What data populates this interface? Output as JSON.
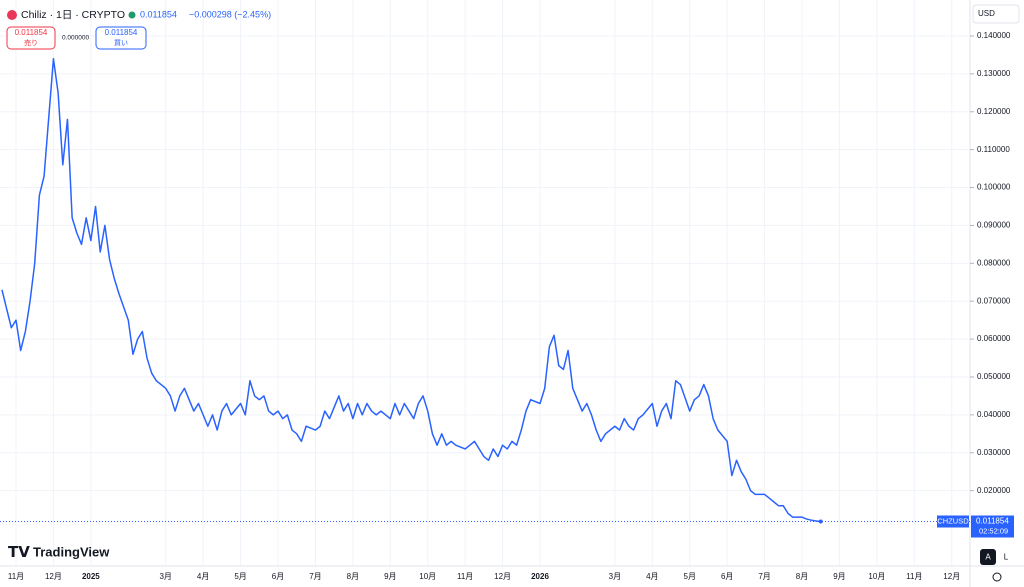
{
  "chart_data": {
    "type": "line",
    "header": {
      "symbol": "Chiliz · 1日 · CRYPTO",
      "price": 0.011854,
      "price_label": "0.011854",
      "change": "−0.000298 (−2.45%)",
      "sell_price": "0.011854",
      "sell": "売り",
      "spread": "0.000000",
      "buy_price": "0.011854",
      "buy": "買い",
      "currency": "USD",
      "ticker": "CHZUSD",
      "countdown": "02:52:09",
      "brand": "TradingView",
      "auto": "A",
      "log": "L"
    },
    "series": [
      {
        "name": "CHZUSD",
        "color": "#2962ff",
        "x": [
          "2024-10",
          "2024-10",
          "2024-10",
          "2024-11",
          "2024-11",
          "2024-11",
          "2024-11",
          "2024-11",
          "2024-11",
          "2024-11",
          "2024-12",
          "2024-12",
          "2024-12",
          "2024-12",
          "2024-12",
          "2024-12",
          "2024-12",
          "2024-12",
          "2025-01",
          "2025-01",
          "2025-01",
          "2025-01",
          "2025-01",
          "2025-01",
          "2025-01",
          "2025-02",
          "2025-02",
          "2025-02",
          "2025-02",
          "2025-02",
          "2025-02",
          "2025-02",
          "2025-03",
          "2025-03",
          "2025-03",
          "2025-03",
          "2025-03",
          "2025-03",
          "2025-03",
          "2025-03",
          "2025-04",
          "2025-04",
          "2025-04",
          "2025-04",
          "2025-04",
          "2025-04",
          "2025-04",
          "2025-05",
          "2025-05",
          "2025-05",
          "2025-05",
          "2025-05",
          "2025-05",
          "2025-05",
          "2025-05",
          "2025-06",
          "2025-06",
          "2025-06",
          "2025-06",
          "2025-06",
          "2025-06",
          "2025-06",
          "2025-07",
          "2025-07",
          "2025-07",
          "2025-07",
          "2025-07",
          "2025-07",
          "2025-07",
          "2025-07",
          "2025-08",
          "2025-08",
          "2025-08",
          "2025-08",
          "2025-08",
          "2025-08",
          "2025-08",
          "2025-09",
          "2025-09",
          "2025-09",
          "2025-09",
          "2025-09",
          "2025-09",
          "2025-09",
          "2025-09",
          "2025-10",
          "2025-10",
          "2025-10",
          "2025-10",
          "2025-10",
          "2025-10",
          "2025-10",
          "2025-11",
          "2025-11",
          "2025-11",
          "2025-11",
          "2025-11",
          "2025-11",
          "2025-11",
          "2025-11",
          "2025-12",
          "2025-12",
          "2025-12",
          "2025-12",
          "2025-12",
          "2025-12",
          "2025-12",
          "2026-01",
          "2026-01",
          "2026-01",
          "2026-01",
          "2026-01",
          "2026-01",
          "2026-01",
          "2026-01",
          "2026-02",
          "2026-02",
          "2026-02",
          "2026-02",
          "2026-02",
          "2026-02",
          "2026-02",
          "2026-03",
          "2026-03",
          "2026-03",
          "2026-03",
          "2026-03",
          "2026-03",
          "2026-03",
          "2026-04",
          "2026-04",
          "2026-04",
          "2026-04",
          "2026-04",
          "2026-04",
          "2026-04",
          "2026-05",
          "2026-05",
          "2026-05",
          "2026-05",
          "2026-05",
          "2026-05",
          "2026-05",
          "2026-06",
          "2026-06",
          "2026-06",
          "2026-06",
          "2026-06",
          "2026-06",
          "2026-06",
          "2026-07",
          "2026-07",
          "2026-07",
          "2026-07",
          "2026-07",
          "2026-07",
          "2026-07",
          "2026-08",
          "2026-08",
          "2026-08",
          "2026-08",
          "2026-08"
        ],
        "values": [
          0.073,
          0.068,
          0.063,
          0.065,
          0.057,
          0.062,
          0.07,
          0.08,
          0.098,
          0.103,
          0.134,
          0.125,
          0.106,
          0.118,
          0.092,
          0.088,
          0.085,
          0.092,
          0.086,
          0.095,
          0.083,
          0.09,
          0.081,
          0.076,
          0.072,
          0.065,
          0.056,
          0.06,
          0.062,
          0.055,
          0.051,
          0.049,
          0.047,
          0.045,
          0.041,
          0.045,
          0.047,
          0.044,
          0.041,
          0.043,
          0.04,
          0.037,
          0.04,
          0.036,
          0.041,
          0.043,
          0.04,
          0.043,
          0.04,
          0.049,
          0.045,
          0.044,
          0.045,
          0.041,
          0.04,
          0.041,
          0.039,
          0.04,
          0.036,
          0.035,
          0.033,
          0.037,
          0.036,
          0.037,
          0.041,
          0.039,
          0.042,
          0.045,
          0.041,
          0.043,
          0.039,
          0.043,
          0.04,
          0.043,
          0.041,
          0.04,
          0.041,
          0.039,
          0.043,
          0.04,
          0.043,
          0.041,
          0.039,
          0.043,
          0.045,
          0.041,
          0.035,
          0.032,
          0.035,
          0.032,
          0.033,
          0.032,
          0.031,
          0.032,
          0.033,
          0.031,
          0.029,
          0.028,
          0.031,
          0.029,
          0.032,
          0.031,
          0.033,
          0.032,
          0.036,
          0.041,
          0.044,
          0.043,
          0.047,
          0.058,
          0.061,
          0.053,
          0.052,
          0.057,
          0.047,
          0.044,
          0.041,
          0.043,
          0.04,
          0.036,
          0.033,
          0.035,
          0.037,
          0.036,
          0.039,
          0.037,
          0.036,
          0.039,
          0.04,
          0.043,
          0.037,
          0.041,
          0.043,
          0.039,
          0.049,
          0.048,
          0.041,
          0.044,
          0.045,
          0.048,
          0.045,
          0.039,
          0.036,
          0.033,
          0.024,
          0.028,
          0.025,
          0.023,
          0.02,
          0.019,
          0.019,
          0.018,
          0.017,
          0.016,
          0.016,
          0.014,
          0.013,
          0.013,
          0.0125,
          0.0122,
          0.012,
          0.011854
        ]
      }
    ],
    "ylim": [
      0.0075,
      0.1495
    ],
    "yticks": [
      {
        "value": 0.14,
        "label": "0.140000"
      },
      {
        "value": 0.13,
        "label": "0.130000"
      },
      {
        "value": 0.12,
        "label": "0.120000"
      },
      {
        "value": 0.11,
        "label": "0.110000"
      },
      {
        "value": 0.1,
        "label": "0.100000"
      },
      {
        "value": 0.09,
        "label": "0.090000"
      },
      {
        "value": 0.08,
        "label": "0.080000"
      },
      {
        "value": 0.07,
        "label": "0.070000"
      },
      {
        "value": 0.06,
        "label": "0.060000"
      },
      {
        "value": 0.05,
        "label": "0.050000"
      },
      {
        "value": 0.04,
        "label": "0.040000"
      },
      {
        "value": 0.03,
        "label": "0.030000"
      },
      {
        "value": 0.02,
        "label": "0.020000"
      }
    ],
    "xticks": [
      {
        "value": "2024-11",
        "label": "11月"
      },
      {
        "value": "2024-12",
        "label": "12月"
      },
      {
        "value": "2025-01",
        "label": "2025"
      },
      {
        "value": "2025-03",
        "label": "3月"
      },
      {
        "value": "2025-04",
        "label": "4月"
      },
      {
        "value": "2025-05",
        "label": "5月"
      },
      {
        "value": "2025-06",
        "label": "6月"
      },
      {
        "value": "2025-07",
        "label": "7月"
      },
      {
        "value": "2025-08",
        "label": "8月"
      },
      {
        "value": "2025-09",
        "label": "9月"
      },
      {
        "value": "2025-10",
        "label": "10月"
      },
      {
        "value": "2025-11",
        "label": "11月"
      },
      {
        "value": "2025-12",
        "label": "12月"
      },
      {
        "value": "2026-01",
        "label": "2026"
      },
      {
        "value": "2026-03",
        "label": "3月"
      },
      {
        "value": "2026-04",
        "label": "4月"
      },
      {
        "value": "2026-05",
        "label": "5月"
      },
      {
        "value": "2026-06",
        "label": "6月"
      },
      {
        "value": "2026-07",
        "label": "7月"
      },
      {
        "value": "2026-08",
        "label": "8月"
      },
      {
        "value": "2026-09",
        "label": "9月"
      },
      {
        "value": "2026-10",
        "label": "10月"
      },
      {
        "value": "2026-11",
        "label": "11月"
      },
      {
        "value": "2026-12",
        "label": "12月"
      }
    ],
    "grid": true
  }
}
